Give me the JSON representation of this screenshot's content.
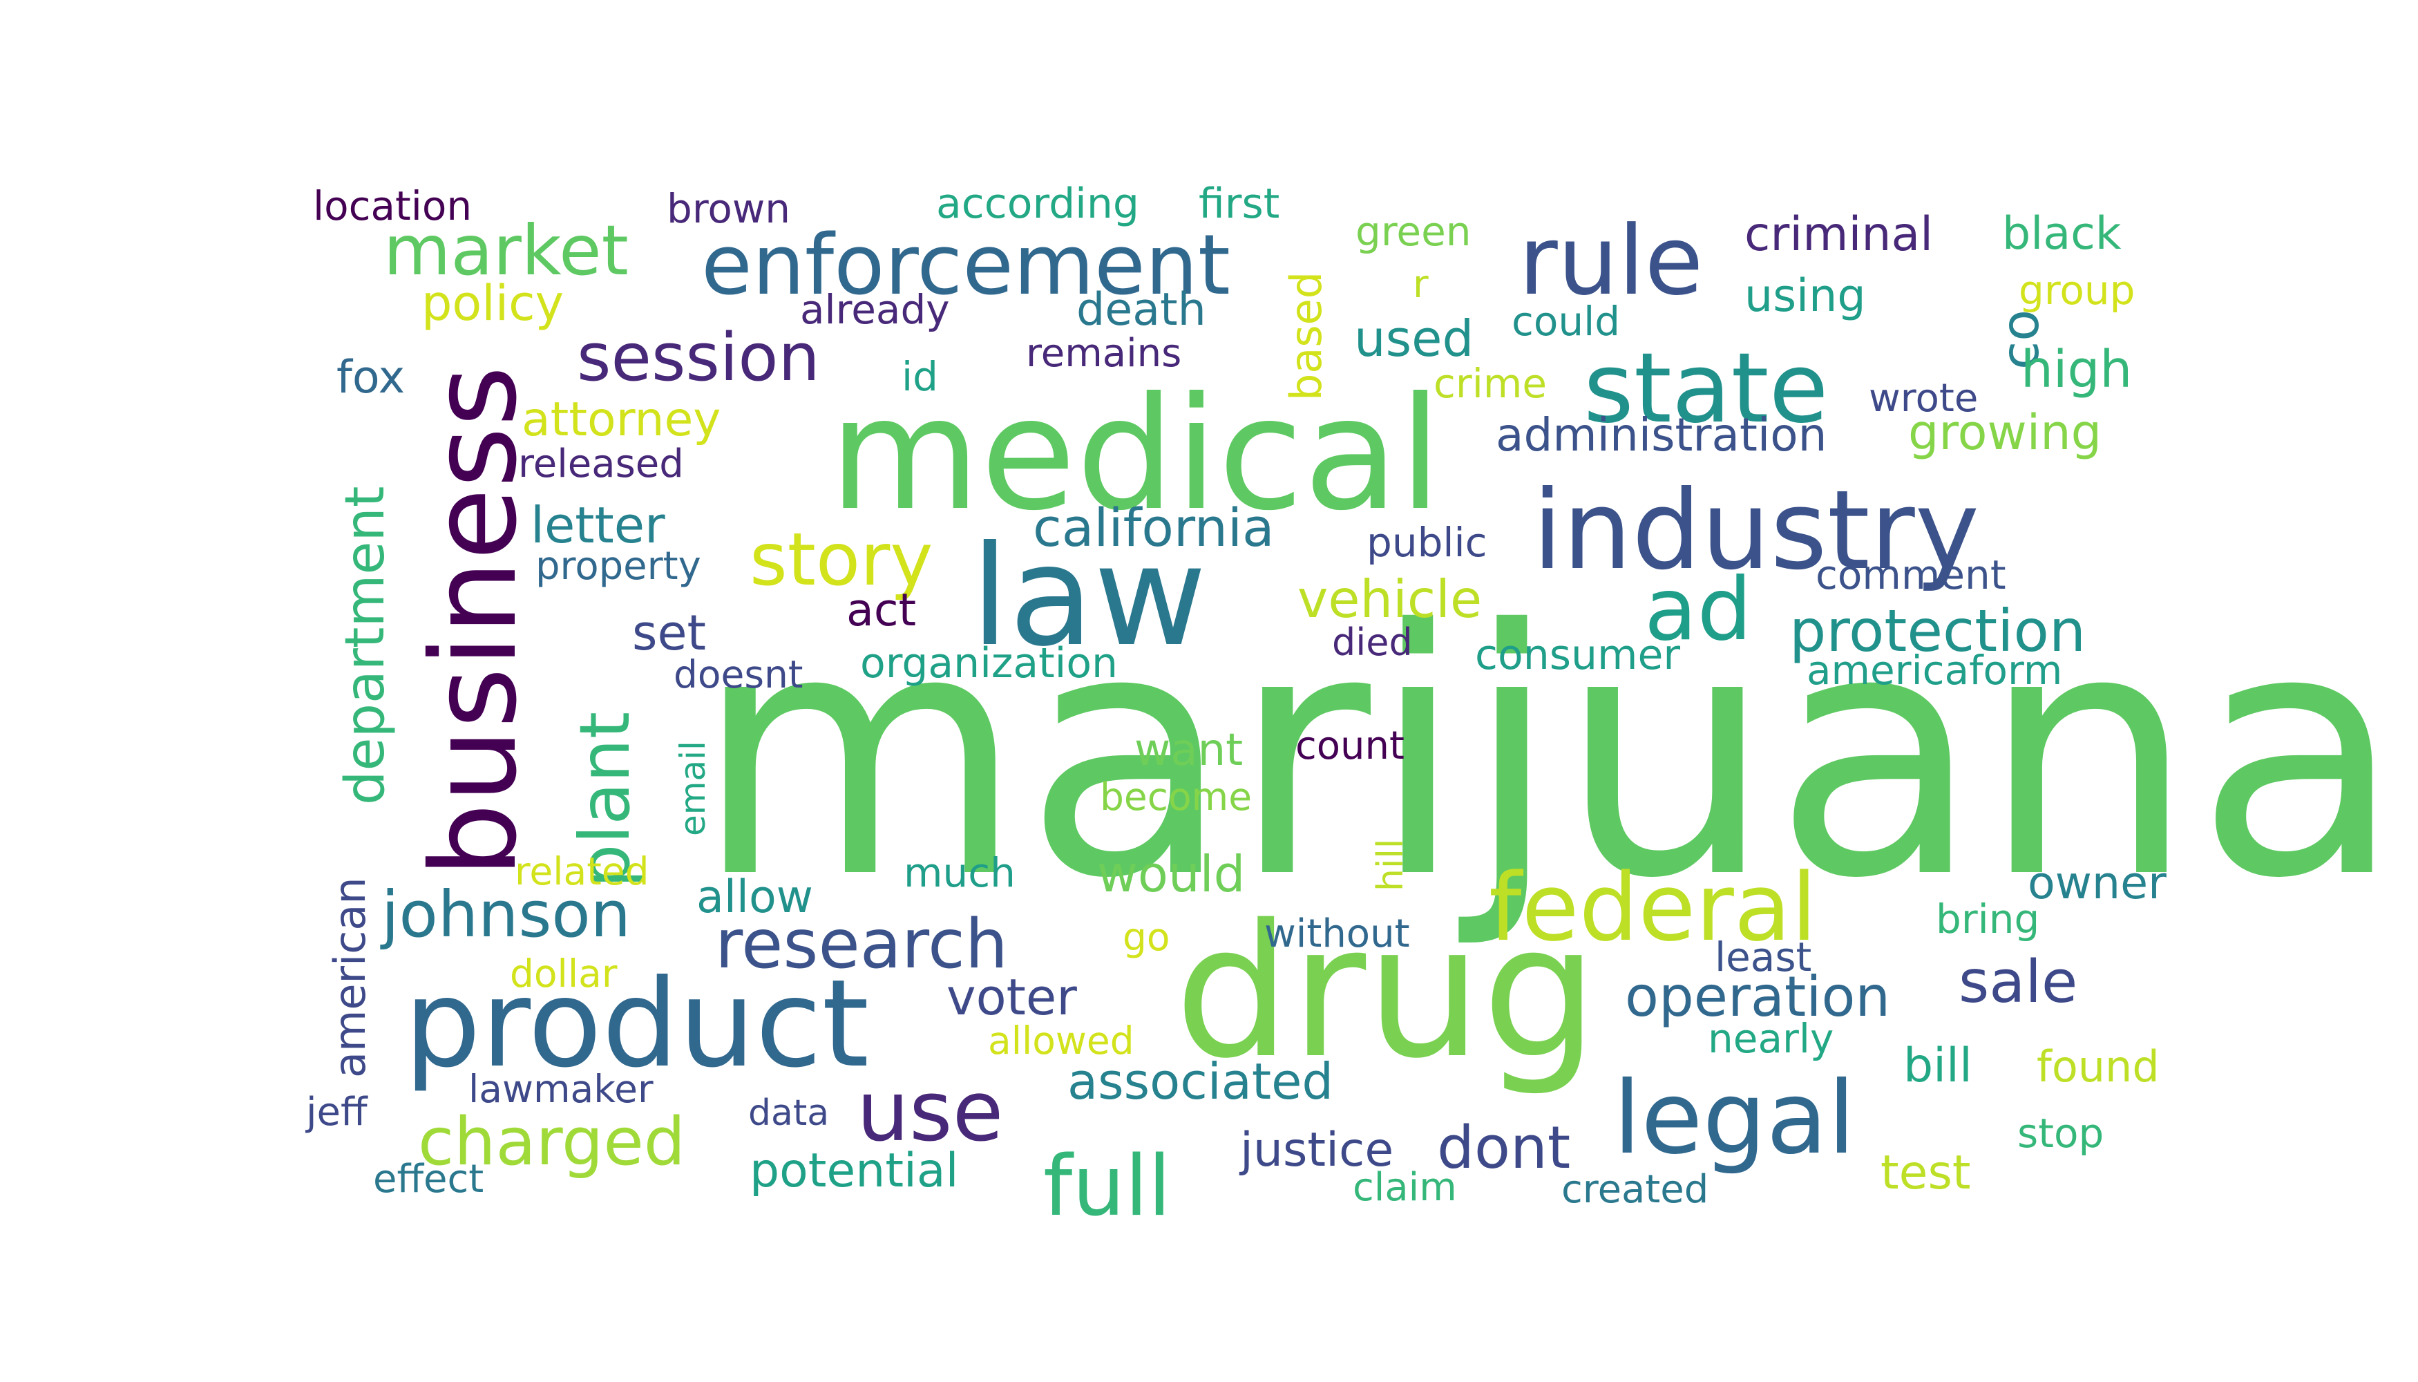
{
  "words": [
    {
      "text": "marijuana",
      "color": "#5ec962"
    },
    {
      "text": "medical",
      "color": "#5ec962"
    },
    {
      "text": "drug",
      "color": "#7ad151"
    },
    {
      "text": "law",
      "color": "#2a788e"
    },
    {
      "text": "industry",
      "color": "#3b528b"
    },
    {
      "text": "business",
      "color": "#440154"
    },
    {
      "text": "product",
      "color": "#31688e"
    },
    {
      "text": "state",
      "color": "#21918c"
    },
    {
      "text": "federal",
      "color": "#bddf26"
    },
    {
      "text": "legal",
      "color": "#31688e"
    },
    {
      "text": "enforcement",
      "color": "#31688e"
    },
    {
      "text": "rule",
      "color": "#3b528b"
    },
    {
      "text": "use",
      "color": "#482878"
    },
    {
      "text": "ad",
      "color": "#1f9e89"
    },
    {
      "text": "market",
      "color": "#5ec962"
    },
    {
      "text": "story",
      "color": "#d2e21b"
    },
    {
      "text": "full",
      "color": "#35b779"
    },
    {
      "text": "research",
      "color": "#3b528b"
    },
    {
      "text": "session",
      "color": "#482878"
    },
    {
      "text": "plant",
      "color": "#35b779"
    },
    {
      "text": "charged",
      "color": "#a0da39"
    },
    {
      "text": "johnson",
      "color": "#2a788e"
    },
    {
      "text": "department",
      "color": "#35b779"
    },
    {
      "text": "protection",
      "color": "#21918c"
    },
    {
      "text": "operation",
      "color": "#31688e"
    },
    {
      "text": "sale",
      "color": "#3e4989"
    },
    {
      "text": "california",
      "color": "#2a788e"
    },
    {
      "text": "dont",
      "color": "#3e4989"
    },
    {
      "text": "co",
      "color": "#26828e"
    },
    {
      "text": "vehicle",
      "color": "#bddf26"
    },
    {
      "text": "associated",
      "color": "#26828e"
    },
    {
      "text": "voter",
      "color": "#3e4989"
    },
    {
      "text": "letter",
      "color": "#26828e"
    },
    {
      "text": "used",
      "color": "#21918c"
    },
    {
      "text": "high",
      "color": "#35b779"
    },
    {
      "text": "would",
      "color": "#6ece58"
    },
    {
      "text": "set",
      "color": "#3e4989"
    },
    {
      "text": "attorney",
      "color": "#d2e21b"
    },
    {
      "text": "policy",
      "color": "#d2e21b"
    },
    {
      "text": "potential",
      "color": "#1fa187"
    },
    {
      "text": "criminal",
      "color": "#482878"
    },
    {
      "text": "growing",
      "color": "#86d549"
    },
    {
      "text": "administration",
      "color": "#3b528b"
    },
    {
      "text": "justice",
      "color": "#3e4989"
    },
    {
      "text": "bill",
      "color": "#22a884"
    },
    {
      "text": "test",
      "color": "#bddf26"
    },
    {
      "text": "owner",
      "color": "#26828e"
    },
    {
      "text": "black",
      "color": "#35b779"
    },
    {
      "text": "allow",
      "color": "#21918c"
    },
    {
      "text": "want",
      "color": "#6ece58"
    },
    {
      "text": "death",
      "color": "#2a788e"
    },
    {
      "text": "based",
      "color": "#d2e21b"
    },
    {
      "text": "american",
      "color": "#3e4989"
    },
    {
      "text": "using",
      "color": "#1f9e89"
    },
    {
      "text": "act",
      "color": "#440154"
    },
    {
      "text": "public",
      "color": "#3e4989"
    },
    {
      "text": "consumer",
      "color": "#1f9e89"
    },
    {
      "text": "americaform",
      "color": "#1f9e89"
    },
    {
      "text": "organization",
      "color": "#1fa187"
    },
    {
      "text": "found",
      "color": "#bddf26"
    },
    {
      "text": "fox",
      "color": "#31688e"
    },
    {
      "text": "according",
      "color": "#22a884"
    },
    {
      "text": "first",
      "color": "#22a884"
    },
    {
      "text": "comment",
      "color": "#3b528b"
    },
    {
      "text": "nearly",
      "color": "#22a884"
    },
    {
      "text": "least",
      "color": "#3b528b"
    },
    {
      "text": "count",
      "color": "#440154"
    },
    {
      "text": "much",
      "color": "#1f9e89"
    },
    {
      "text": "green",
      "color": "#7ad151"
    },
    {
      "text": "location",
      "color": "#440154"
    },
    {
      "text": "brown",
      "color": "#482878"
    },
    {
      "text": "released",
      "color": "#482878"
    },
    {
      "text": "property",
      "color": "#31688e"
    },
    {
      "text": "already",
      "color": "#482878"
    },
    {
      "text": "remains",
      "color": "#482878"
    },
    {
      "text": "could",
      "color": "#21918c"
    },
    {
      "text": "wrote",
      "color": "#3e4989"
    },
    {
      "text": "group",
      "color": "#d2e21b"
    },
    {
      "text": "id",
      "color": "#1fa187"
    },
    {
      "text": "crime",
      "color": "#bddf26"
    },
    {
      "text": "r",
      "color": "#bddf26"
    },
    {
      "text": "doesnt",
      "color": "#3e4989"
    },
    {
      "text": "died",
      "color": "#482878"
    },
    {
      "text": "email",
      "color": "#22a884"
    },
    {
      "text": "become",
      "color": "#86d549"
    },
    {
      "text": "hill",
      "color": "#bddf26"
    },
    {
      "text": "related",
      "color": "#d2e21b"
    },
    {
      "text": "go",
      "color": "#d2e21b"
    },
    {
      "text": "without",
      "color": "#31688e"
    },
    {
      "text": "bring",
      "color": "#35b779"
    },
    {
      "text": "dollar",
      "color": "#d2e21b"
    },
    {
      "text": "allowed",
      "color": "#d2e21b"
    },
    {
      "text": "lawmaker",
      "color": "#3e4989"
    },
    {
      "text": "jeff",
      "color": "#3e4989"
    },
    {
      "text": "data",
      "color": "#3e4989"
    },
    {
      "text": "stop",
      "color": "#35b779"
    },
    {
      "text": "effect",
      "color": "#2a788e"
    },
    {
      "text": "claim",
      "color": "#35b779"
    },
    {
      "text": "created",
      "color": "#2a788e"
    }
  ]
}
